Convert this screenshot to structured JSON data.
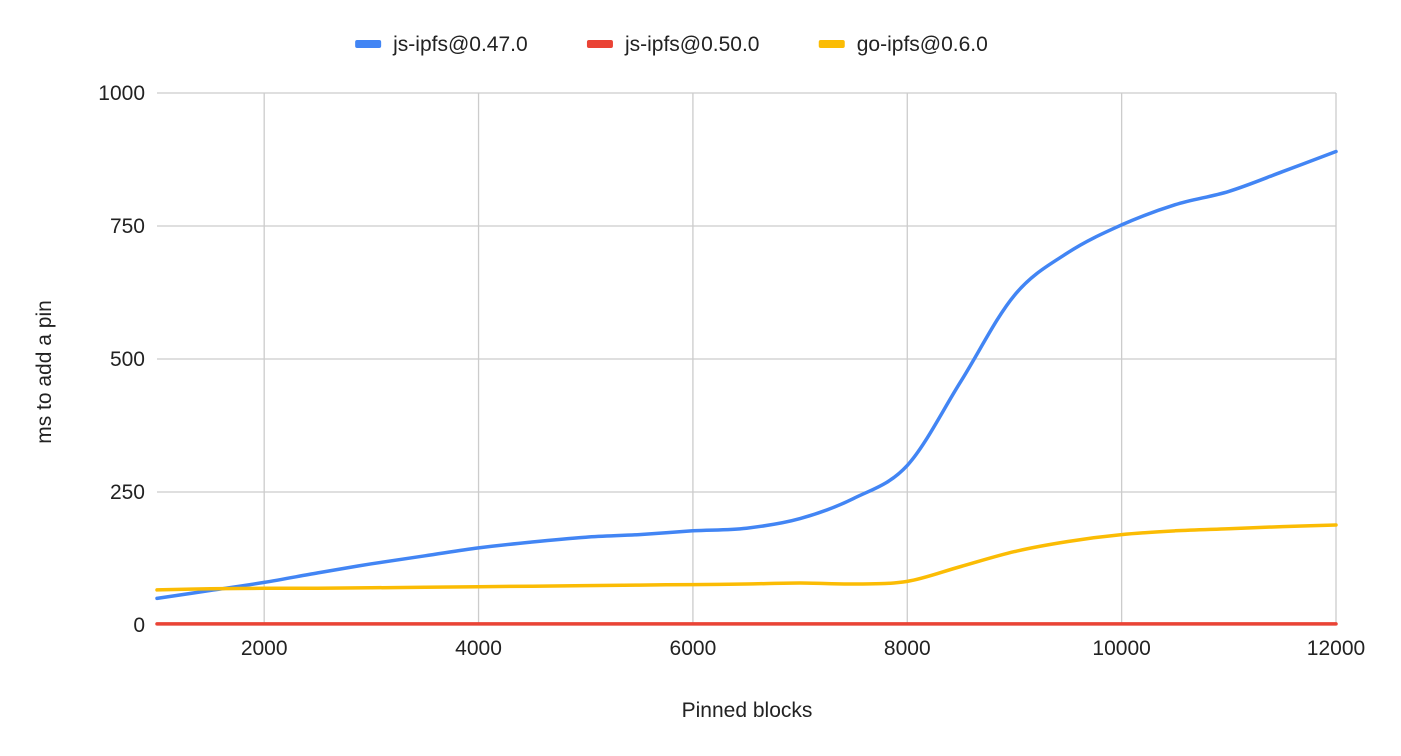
{
  "chart_data": {
    "type": "line",
    "title": "",
    "xlabel": "Pinned blocks",
    "ylabel": "ms to add a pin",
    "xlim": [
      1000,
      12000
    ],
    "ylim": [
      0,
      1000
    ],
    "x_ticks": [
      2000,
      4000,
      6000,
      8000,
      10000,
      12000
    ],
    "y_ticks": [
      0,
      250,
      500,
      750,
      1000
    ],
    "grid": true,
    "legend_position": "top",
    "series": [
      {
        "name": "js-ipfs@0.47.0",
        "color": "#4285f4",
        "x": [
          1000,
          1500,
          2000,
          2500,
          3000,
          3500,
          4000,
          4500,
          5000,
          5500,
          6000,
          6500,
          7000,
          7500,
          8000,
          8500,
          9000,
          9500,
          10000,
          10500,
          11000,
          11500,
          12000
        ],
        "values": [
          50,
          65,
          80,
          98,
          115,
          130,
          145,
          156,
          165,
          170,
          177,
          182,
          200,
          238,
          300,
          458,
          620,
          700,
          752,
          790,
          815,
          852,
          890
        ]
      },
      {
        "name": "js-ipfs@0.50.0",
        "color": "#ea4335",
        "x": [
          1000,
          1500,
          2000,
          2500,
          3000,
          3500,
          4000,
          4500,
          5000,
          5500,
          6000,
          6500,
          7000,
          7500,
          8000,
          8500,
          9000,
          9500,
          10000,
          10500,
          11000,
          11500,
          12000
        ],
        "values": [
          2,
          2,
          2,
          2,
          2,
          2,
          2,
          2,
          2,
          2,
          2,
          2,
          2,
          2,
          2,
          2,
          2,
          2,
          2,
          2,
          2,
          2,
          2
        ]
      },
      {
        "name": "go-ipfs@0.6.0",
        "color": "#fbbc04",
        "x": [
          1000,
          1500,
          2000,
          2500,
          3000,
          3500,
          4000,
          4500,
          5000,
          5500,
          6000,
          6500,
          7000,
          7500,
          8000,
          8500,
          9000,
          9500,
          10000,
          10500,
          11000,
          11500,
          12000
        ],
        "values": [
          66,
          68,
          69,
          69,
          70,
          71,
          72,
          73,
          74,
          75,
          76,
          77,
          79,
          77,
          82,
          110,
          138,
          157,
          170,
          177,
          181,
          185,
          188
        ]
      }
    ]
  }
}
